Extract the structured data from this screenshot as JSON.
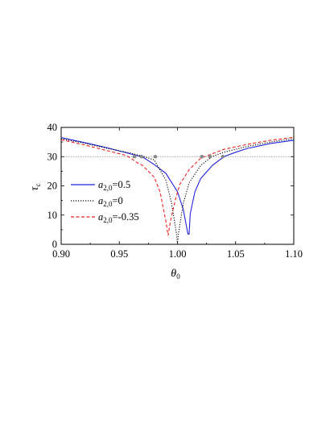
{
  "chart_data": {
    "type": "line",
    "title": "",
    "xlabel": "θ",
    "xlabel_sub": "0",
    "ylabel": "τ",
    "ylabel_sub": "c",
    "xlim": [
      0.9,
      1.1
    ],
    "ylim": [
      0,
      40
    ],
    "xticks": [
      0.9,
      0.95,
      1.0,
      1.05,
      1.1
    ],
    "xtick_labels": [
      "0.90",
      "0.95",
      "1.00",
      "1.05",
      "1.10"
    ],
    "yticks": [
      0,
      10,
      20,
      30,
      40
    ],
    "ytick_labels": [
      "0",
      "10",
      "20",
      "30",
      "40"
    ],
    "grid": false,
    "legend_position": "left",
    "reference_line": {
      "y": 30,
      "style": "dotted",
      "color": "#888888"
    },
    "series": [
      {
        "name": "a2,0=0.5",
        "legend_var": "a",
        "legend_sub": "2,0",
        "legend_value": "=0.5",
        "color": "#2222dd",
        "style": "solid",
        "x": [
          0.9,
          0.92,
          0.94,
          0.96,
          0.97,
          0.98,
          0.99,
          1.0,
          1.005,
          1.009,
          1.01,
          1.011,
          1.015,
          1.02,
          1.03,
          1.04,
          1.05,
          1.06,
          1.08,
          1.1
        ],
        "y": [
          36.5,
          34.8,
          33.0,
          30.9,
          29.9,
          27.3,
          24.3,
          18.0,
          12.0,
          3.5,
          3.5,
          10.5,
          18.0,
          22.5,
          27.0,
          30.0,
          31.5,
          32.8,
          34.5,
          35.6
        ]
      },
      {
        "name": "a2,0=0",
        "legend_var": "a",
        "legend_sub": "2,0",
        "legend_value": "=0",
        "color": "#000000",
        "style": "dotted",
        "x": [
          0.9,
          0.92,
          0.94,
          0.96,
          0.97,
          0.98,
          0.99,
          0.995,
          0.999,
          1.0,
          1.001,
          1.005,
          1.01,
          1.02,
          1.03,
          1.04,
          1.06,
          1.08,
          1.1
        ],
        "y": [
          36.1,
          34.6,
          32.8,
          31.2,
          30.1,
          28.9,
          22.0,
          14.0,
          4.0,
          0.5,
          4.0,
          14.0,
          21.0,
          27.0,
          30.1,
          31.5,
          33.5,
          35.0,
          36.1
        ]
      },
      {
        "name": "a2,0=-0.35",
        "legend_var": "a",
        "legend_sub": "2,0",
        "legend_value": "=-0.35",
        "color": "#ee2222",
        "style": "dashed",
        "x": [
          0.9,
          0.92,
          0.94,
          0.955,
          0.96,
          0.965,
          0.97,
          0.98,
          0.985,
          0.99,
          0.992,
          0.994,
          0.998,
          1.002,
          1.01,
          1.02,
          1.04,
          1.06,
          1.08,
          1.1
        ],
        "y": [
          35.8,
          34.0,
          32.0,
          30.5,
          29.5,
          28.0,
          27.0,
          23.0,
          18.0,
          8.0,
          3.0,
          8.0,
          15.0,
          20.5,
          25.5,
          29.5,
          32.5,
          34.2,
          35.6,
          36.6
        ]
      }
    ],
    "markers": [
      {
        "x": 0.963,
        "y": 30,
        "color": "#888888"
      },
      {
        "x": 0.969,
        "y": 30,
        "color": "#888888"
      },
      {
        "x": 0.981,
        "y": 30,
        "color": "#888888"
      },
      {
        "x": 1.021,
        "y": 30,
        "color": "#888888"
      },
      {
        "x": 1.028,
        "y": 30,
        "color": "#888888"
      },
      {
        "x": 1.039,
        "y": 30,
        "color": "#888888"
      }
    ]
  }
}
